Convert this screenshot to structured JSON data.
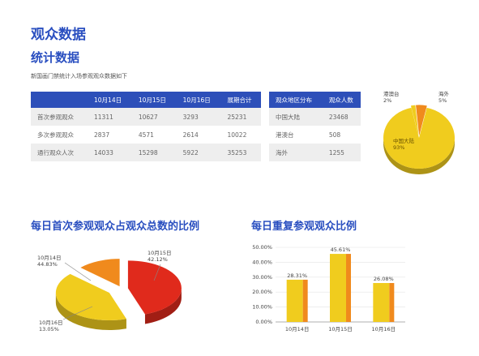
{
  "heading": "观众数据",
  "subheading": "统计数据",
  "note": "新国画门禁统计入场参观观众数据如下",
  "table_daily": {
    "headers": [
      "",
      "10月14日",
      "10月15日",
      "10月16日",
      "展期合计"
    ],
    "rows": [
      [
        "首次参观观众",
        "11311",
        "10627",
        "3293",
        "25231"
      ],
      [
        "多次参观观众",
        "2837",
        "4571",
        "2614",
        "10022"
      ],
      [
        "通行观众人次",
        "14033",
        "15298",
        "5922",
        "35253"
      ]
    ]
  },
  "table_region": {
    "headers": [
      "观众地区分布",
      "观众人数"
    ],
    "rows": [
      [
        "中国大陆",
        "23468"
      ],
      [
        "港澳台",
        "508"
      ],
      [
        "海外",
        "1255"
      ]
    ]
  },
  "colors": {
    "accent": "#2a4fc0",
    "header": "#2d4fb9",
    "yellow": "#f0cc1e",
    "orange": "#f08a1d",
    "red": "#e02a1c"
  },
  "chart_data": [
    {
      "type": "pie",
      "labels": [
        "港澳台",
        "海外",
        "中国大陆"
      ],
      "values": [
        2,
        5,
        93
      ],
      "value_labels": [
        "2%",
        "5%",
        "93%"
      ]
    },
    {
      "type": "pie",
      "title": "每日首次参观观众占观众总数的比例",
      "labels": [
        "10月14日",
        "10月15日",
        "10月16日"
      ],
      "values": [
        44.83,
        42.12,
        13.05
      ],
      "value_labels": [
        "44.83%",
        "42.12%",
        "13.05%"
      ]
    },
    {
      "type": "bar",
      "title": "每日重复参观观众比例",
      "categories": [
        "10月14日",
        "10月15日",
        "10月16日"
      ],
      "values": [
        28.31,
        45.61,
        26.08
      ],
      "value_labels": [
        "28.31%",
        "45.61%",
        "26.08%"
      ],
      "ylim": [
        0,
        50
      ],
      "yticks": [
        "0.00%",
        "10.00%",
        "20.00%",
        "30.00%",
        "40.00%",
        "50.00%"
      ]
    }
  ]
}
